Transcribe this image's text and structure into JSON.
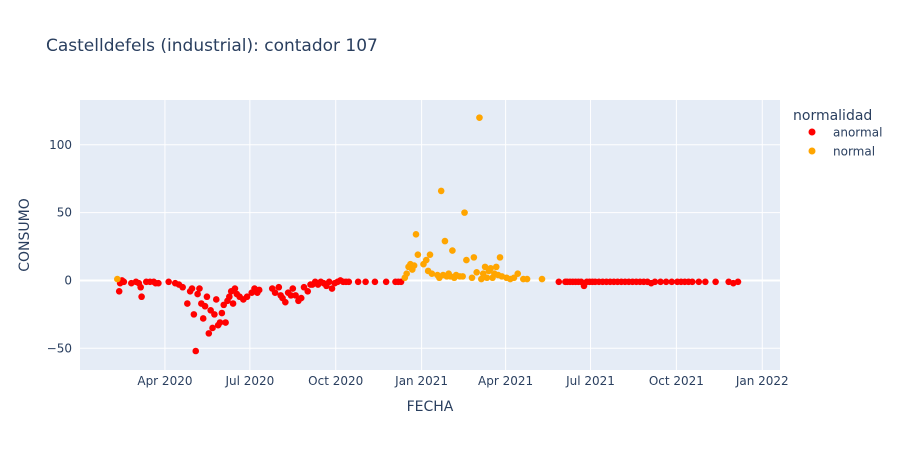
{
  "chart_data": {
    "type": "scatter",
    "title": "Castelldefels (industrial): contador 107",
    "xlabel": "FECHA",
    "ylabel": "CONSUMO",
    "xlim": [
      "2020-01-01",
      "2022-01-20"
    ],
    "ylim": [
      -66,
      133
    ],
    "x_ticks": [
      {
        "date": "2020-04-01",
        "label": "Apr 2020"
      },
      {
        "date": "2020-07-01",
        "label": "Jul 2020"
      },
      {
        "date": "2020-10-01",
        "label": "Oct 2020"
      },
      {
        "date": "2021-01-01",
        "label": "Jan 2021"
      },
      {
        "date": "2021-04-01",
        "label": "Apr 2021"
      },
      {
        "date": "2021-07-01",
        "label": "Jul 2021"
      },
      {
        "date": "2021-10-01",
        "label": "Oct 2021"
      },
      {
        "date": "2022-01-01",
        "label": "Jan 2022"
      }
    ],
    "y_ticks": [
      {
        "value": -50,
        "label": "−50"
      },
      {
        "value": 0,
        "label": "0"
      },
      {
        "value": 50,
        "label": "50"
      },
      {
        "value": 100,
        "label": "100"
      }
    ],
    "grid": true,
    "legend_position": "top-right",
    "legend": {
      "title": "normalidad",
      "entries": [
        {
          "name": "anormal",
          "color": "#ff0000"
        },
        {
          "name": "normal",
          "color": "#ffa500"
        }
      ]
    },
    "colors": {
      "plot_bg": "#e5ecf6",
      "grid": "#ffffff",
      "text": "#2a3f5f"
    },
    "series": [
      {
        "name": "anormal",
        "color": "#ff0000",
        "points": [
          [
            "2020-02-12",
            -8
          ],
          [
            "2020-02-13",
            -2
          ],
          [
            "2020-02-15",
            0
          ],
          [
            "2020-02-17",
            -1
          ],
          [
            "2020-02-25",
            -2
          ],
          [
            "2020-03-01",
            -1
          ],
          [
            "2020-03-04",
            -2
          ],
          [
            "2020-03-06",
            -5
          ],
          [
            "2020-03-07",
            -12
          ],
          [
            "2020-03-12",
            -1
          ],
          [
            "2020-03-16",
            -1
          ],
          [
            "2020-03-20",
            -1
          ],
          [
            "2020-03-22",
            -2
          ],
          [
            "2020-03-25",
            -2
          ],
          [
            "2020-04-05",
            -1
          ],
          [
            "2020-04-12",
            -2
          ],
          [
            "2020-04-16",
            -3
          ],
          [
            "2020-04-20",
            -5
          ],
          [
            "2020-04-25",
            -17
          ],
          [
            "2020-04-28",
            -8
          ],
          [
            "2020-04-30",
            -6
          ],
          [
            "2020-05-02",
            -25
          ],
          [
            "2020-05-04",
            -52
          ],
          [
            "2020-05-06",
            -10
          ],
          [
            "2020-05-08",
            -6
          ],
          [
            "2020-05-10",
            -17
          ],
          [
            "2020-05-12",
            -28
          ],
          [
            "2020-05-14",
            -19
          ],
          [
            "2020-05-16",
            -12
          ],
          [
            "2020-05-18",
            -39
          ],
          [
            "2020-05-20",
            -22
          ],
          [
            "2020-05-22",
            -35
          ],
          [
            "2020-05-24",
            -25
          ],
          [
            "2020-05-26",
            -14
          ],
          [
            "2020-05-28",
            -33
          ],
          [
            "2020-05-30",
            -31
          ],
          [
            "2020-06-01",
            -24
          ],
          [
            "2020-06-03",
            -18
          ],
          [
            "2020-06-05",
            -31
          ],
          [
            "2020-06-07",
            -15
          ],
          [
            "2020-06-09",
            -12
          ],
          [
            "2020-06-11",
            -8
          ],
          [
            "2020-06-13",
            -17
          ],
          [
            "2020-06-15",
            -6
          ],
          [
            "2020-06-17",
            -10
          ],
          [
            "2020-06-20",
            -12
          ],
          [
            "2020-06-24",
            -14
          ],
          [
            "2020-06-28",
            -12
          ],
          [
            "2020-07-03",
            -9
          ],
          [
            "2020-07-06",
            -6
          ],
          [
            "2020-07-09",
            -9
          ],
          [
            "2020-07-11",
            -7
          ],
          [
            "2020-07-25",
            -6
          ],
          [
            "2020-07-28",
            -9
          ],
          [
            "2020-08-01",
            -5
          ],
          [
            "2020-08-03",
            -11
          ],
          [
            "2020-08-05",
            -13
          ],
          [
            "2020-08-08",
            -16
          ],
          [
            "2020-08-11",
            -9
          ],
          [
            "2020-08-14",
            -11
          ],
          [
            "2020-08-16",
            -6
          ],
          [
            "2020-08-19",
            -11
          ],
          [
            "2020-08-22",
            -15
          ],
          [
            "2020-08-25",
            -13
          ],
          [
            "2020-08-28",
            -5
          ],
          [
            "2020-09-01",
            -8
          ],
          [
            "2020-09-04",
            -3
          ],
          [
            "2020-09-06",
            -3
          ],
          [
            "2020-09-09",
            -1
          ],
          [
            "2020-09-12",
            -3
          ],
          [
            "2020-09-15",
            -1
          ],
          [
            "2020-09-18",
            -2
          ],
          [
            "2020-09-21",
            -4
          ],
          [
            "2020-09-24",
            -1
          ],
          [
            "2020-09-27",
            -6
          ],
          [
            "2020-09-30",
            -2
          ],
          [
            "2020-10-03",
            -1
          ],
          [
            "2020-10-06",
            0
          ],
          [
            "2020-10-09",
            -1
          ],
          [
            "2020-10-12",
            -1
          ],
          [
            "2020-10-15",
            -1
          ],
          [
            "2020-10-25",
            -1
          ],
          [
            "2020-11-02",
            -1
          ],
          [
            "2020-11-12",
            -1
          ],
          [
            "2020-11-24",
            -1
          ],
          [
            "2020-12-04",
            -1
          ],
          [
            "2020-12-07",
            -1
          ],
          [
            "2020-12-10",
            -1
          ],
          [
            "2021-05-28",
            -1
          ],
          [
            "2021-06-04",
            -1
          ],
          [
            "2021-06-06",
            -1
          ],
          [
            "2021-06-09",
            -1
          ],
          [
            "2021-06-12",
            -1
          ],
          [
            "2021-06-15",
            -1
          ],
          [
            "2021-06-18",
            -1
          ],
          [
            "2021-06-21",
            -1
          ],
          [
            "2021-06-24",
            -4
          ],
          [
            "2021-06-27",
            -1
          ],
          [
            "2021-06-30",
            -1
          ],
          [
            "2021-07-03",
            -1
          ],
          [
            "2021-07-06",
            -1
          ],
          [
            "2021-07-10",
            -1
          ],
          [
            "2021-07-14",
            -1
          ],
          [
            "2021-07-18",
            -1
          ],
          [
            "2021-07-22",
            -1
          ],
          [
            "2021-07-26",
            -1
          ],
          [
            "2021-07-30",
            -1
          ],
          [
            "2021-08-03",
            -1
          ],
          [
            "2021-08-07",
            -1
          ],
          [
            "2021-08-11",
            -1
          ],
          [
            "2021-08-15",
            -1
          ],
          [
            "2021-08-19",
            -1
          ],
          [
            "2021-08-23",
            -1
          ],
          [
            "2021-08-27",
            -1
          ],
          [
            "2021-08-31",
            -1
          ],
          [
            "2021-09-04",
            -2
          ],
          [
            "2021-09-08",
            -1
          ],
          [
            "2021-09-14",
            -1
          ],
          [
            "2021-09-20",
            -1
          ],
          [
            "2021-09-26",
            -1
          ],
          [
            "2021-10-02",
            -1
          ],
          [
            "2021-10-06",
            -1
          ],
          [
            "2021-10-10",
            -1
          ],
          [
            "2021-10-14",
            -1
          ],
          [
            "2021-10-18",
            -1
          ],
          [
            "2021-10-25",
            -1
          ],
          [
            "2021-11-01",
            -1
          ],
          [
            "2021-11-12",
            -1
          ],
          [
            "2021-11-26",
            -1
          ],
          [
            "2021-12-01",
            -2
          ],
          [
            "2021-12-06",
            -1
          ]
        ]
      },
      {
        "name": "normal",
        "color": "#ffa500",
        "points": [
          [
            "2020-02-10",
            1
          ],
          [
            "2020-12-14",
            2
          ],
          [
            "2020-12-16",
            5
          ],
          [
            "2020-12-18",
            10
          ],
          [
            "2020-12-20",
            12
          ],
          [
            "2020-12-22",
            8
          ],
          [
            "2020-12-24",
            11
          ],
          [
            "2020-12-26",
            34
          ],
          [
            "2020-12-28",
            19
          ],
          [
            "2021-01-03",
            12
          ],
          [
            "2021-01-06",
            15
          ],
          [
            "2021-01-08",
            7
          ],
          [
            "2021-01-10",
            19
          ],
          [
            "2021-01-12",
            5
          ],
          [
            "2021-01-18",
            4
          ],
          [
            "2021-01-20",
            2
          ],
          [
            "2021-01-22",
            66
          ],
          [
            "2021-01-24",
            4
          ],
          [
            "2021-01-26",
            29
          ],
          [
            "2021-01-28",
            3
          ],
          [
            "2021-01-30",
            5
          ],
          [
            "2021-02-01",
            3
          ],
          [
            "2021-02-03",
            22
          ],
          [
            "2021-02-05",
            2
          ],
          [
            "2021-02-07",
            4
          ],
          [
            "2021-02-11",
            3
          ],
          [
            "2021-02-14",
            3
          ],
          [
            "2021-02-16",
            50
          ],
          [
            "2021-02-18",
            15
          ],
          [
            "2021-02-24",
            2
          ],
          [
            "2021-02-26",
            17
          ],
          [
            "2021-03-01",
            6
          ],
          [
            "2021-03-04",
            120
          ],
          [
            "2021-03-06",
            1
          ],
          [
            "2021-03-08",
            5
          ],
          [
            "2021-03-10",
            10
          ],
          [
            "2021-03-12",
            2
          ],
          [
            "2021-03-14",
            7
          ],
          [
            "2021-03-16",
            9
          ],
          [
            "2021-03-18",
            2
          ],
          [
            "2021-03-20",
            5
          ],
          [
            "2021-03-22",
            10
          ],
          [
            "2021-03-24",
            4
          ],
          [
            "2021-03-26",
            17
          ],
          [
            "2021-03-28",
            3
          ],
          [
            "2021-04-02",
            2
          ],
          [
            "2021-04-06",
            1
          ],
          [
            "2021-04-10",
            2
          ],
          [
            "2021-04-14",
            5
          ],
          [
            "2021-04-20",
            1
          ],
          [
            "2021-04-24",
            1
          ],
          [
            "2021-05-10",
            1
          ]
        ]
      }
    ]
  }
}
